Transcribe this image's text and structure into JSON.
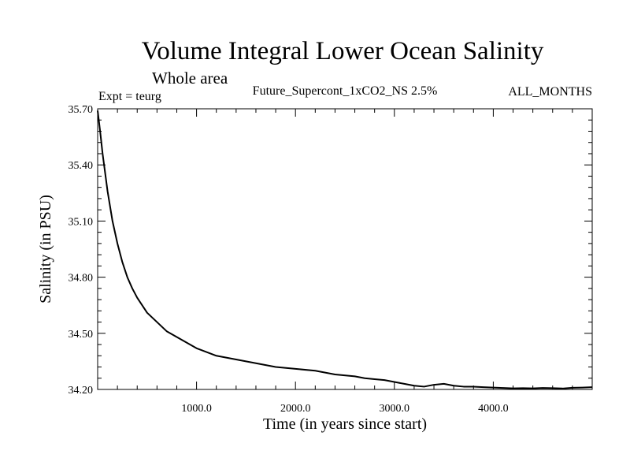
{
  "chart_data": {
    "type": "line",
    "title": "Volume Integral Lower Ocean Salinity",
    "subtitle": "Whole area",
    "left_label": "Expt = teurg",
    "center_label": "Future_Supercont_1xCO2_NS 2.5%",
    "right_label": "ALL_MONTHS",
    "xlabel": "Time (in years since start)",
    "ylabel": "Salinity (in PSU)",
    "xlim": [
      0,
      5000
    ],
    "ylim": [
      34.2,
      35.7
    ],
    "x_ticks": [
      1000,
      2000,
      3000,
      4000
    ],
    "x_tick_labels": [
      "1000.0",
      "2000.0",
      "3000.0",
      "4000.0"
    ],
    "y_ticks": [
      34.2,
      34.5,
      34.8,
      35.1,
      35.4,
      35.7
    ],
    "y_tick_labels": [
      "34.20",
      "34.50",
      "34.80",
      "35.10",
      "35.40",
      "35.70"
    ],
    "grid": false,
    "series": [
      {
        "color": "#000000",
        "x": [
          0,
          25,
          50,
          100,
          150,
          200,
          250,
          300,
          350,
          400,
          450,
          500,
          600,
          700,
          800,
          900,
          1000,
          1200,
          1400,
          1600,
          1800,
          2000,
          2200,
          2400,
          2600,
          2700,
          2800,
          2900,
          3000,
          3100,
          3200,
          3300,
          3400,
          3500,
          3600,
          3700,
          3800,
          3900,
          4000,
          4100,
          4200,
          4300,
          4400,
          4500,
          4600,
          4700,
          4800,
          4900,
          5000
        ],
        "y": [
          35.69,
          35.58,
          35.46,
          35.26,
          35.1,
          34.98,
          34.88,
          34.8,
          34.74,
          34.69,
          34.65,
          34.61,
          34.56,
          34.51,
          34.48,
          34.45,
          34.42,
          34.38,
          34.36,
          34.34,
          34.32,
          34.31,
          34.3,
          34.28,
          34.27,
          34.26,
          34.255,
          34.25,
          34.24,
          34.23,
          34.22,
          34.215,
          34.225,
          34.23,
          34.22,
          34.215,
          34.215,
          34.212,
          34.21,
          34.208,
          34.206,
          34.207,
          34.206,
          34.208,
          34.207,
          34.205,
          34.209,
          34.21,
          34.212
        ]
      }
    ]
  }
}
